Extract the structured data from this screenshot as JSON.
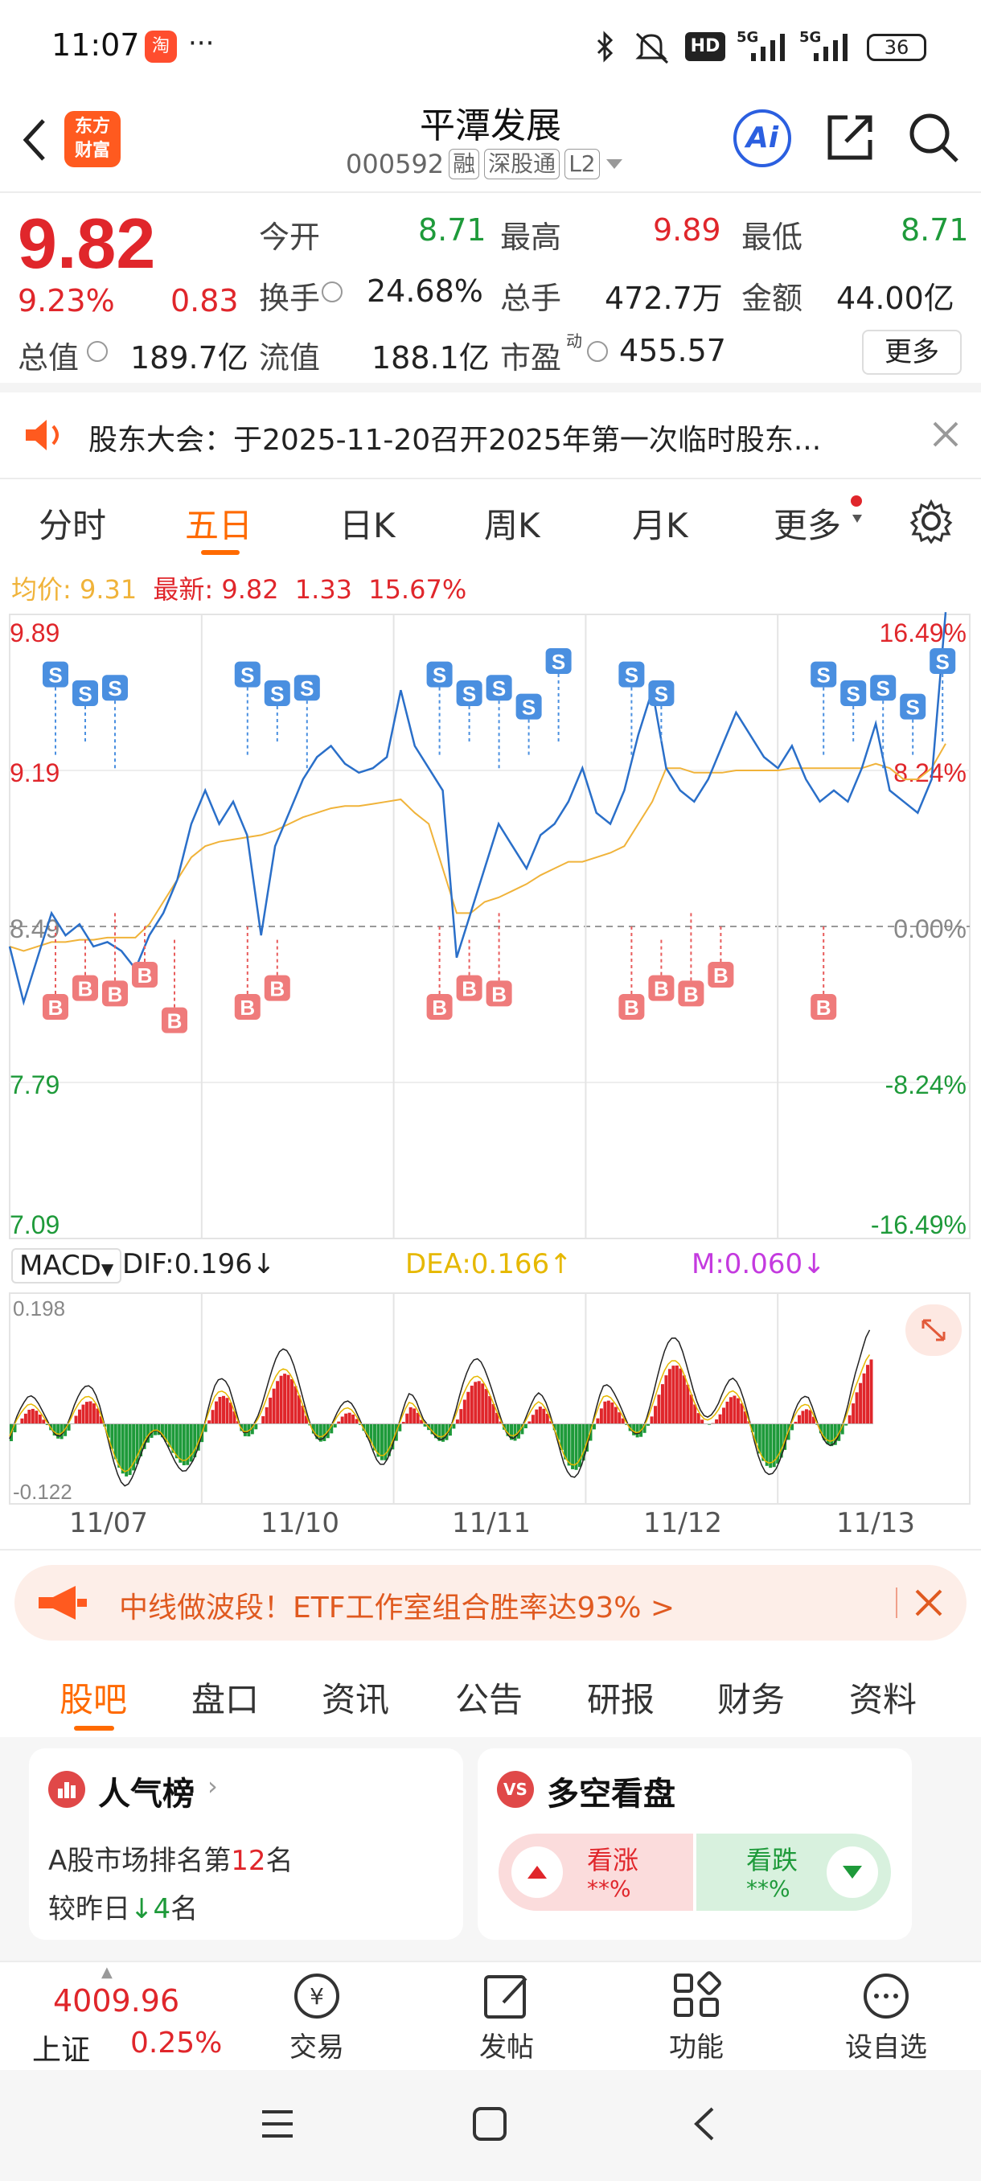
{
  "status_bar": {
    "time": "11:07",
    "app_icon_label": "淘",
    "more": "···",
    "icons": [
      "bluetooth-icon",
      "mute-icon",
      "hd-icon",
      "signal-5g-icon",
      "signal-5g-icon",
      "battery-icon"
    ],
    "hd_label": "HD",
    "net1": "5G",
    "net2": "5G",
    "battery": "36"
  },
  "header": {
    "logo_text_1": "东方",
    "logo_text_2": "财富",
    "title": "平潭发展",
    "code": "000592",
    "tag1": "融",
    "tag2": "深股通",
    "tag3": "L2",
    "ai_label": "Ai"
  },
  "quote": {
    "price": "9.82",
    "pct": "9.23%",
    "change": "0.83",
    "open_label": "今开",
    "open": "8.71",
    "high_label": "最高",
    "high": "9.89",
    "low_label": "最低",
    "low": "8.71",
    "turnover_label": "换手",
    "turnover": "24.68%",
    "volume_label": "总手",
    "volume": "472.7万",
    "amount_label": "金额",
    "amount": "44.00亿",
    "mktcap_label": "总值",
    "mktcap": "189.7亿",
    "float_label": "流值",
    "float": "188.1亿",
    "pe_label": "市盈",
    "pe_sup": "动",
    "pe": "455.57",
    "more_button": "更多"
  },
  "notice": {
    "text": "股东大会：于2025-11-20召开2025年第一次临时股东..."
  },
  "chart_tabs": {
    "tabs": [
      "分时",
      "五日",
      "日K",
      "周K",
      "月K",
      "更多"
    ],
    "active_index": 1
  },
  "chart_info": {
    "avg_label": "均价:",
    "avg": "9.31",
    "last_label": "最新:",
    "last": "9.82",
    "last_chg": "1.33",
    "last_pct": "15.67%"
  },
  "chart_data": {
    "type": "line",
    "y_left_ticks": [
      "9.89",
      "9.19",
      "8.49",
      "7.79",
      "7.09"
    ],
    "y_right_ticks": [
      "16.49%",
      "8.24%",
      "0.00%",
      "-8.24%",
      "-16.49%"
    ],
    "ylim": [
      7.09,
      9.89
    ],
    "baseline": 8.49,
    "x_labels": [
      "11/07",
      "11/10",
      "11/11",
      "11/12",
      "11/13"
    ],
    "series": [
      {
        "values": [
          8.4,
          8.15,
          8.35,
          8.55,
          8.45,
          8.5,
          8.4,
          8.42,
          8.38,
          8.3,
          8.45,
          8.55,
          8.7,
          8.95,
          9.1,
          8.95,
          9.05,
          8.9,
          8.45,
          8.85,
          9.0,
          9.15,
          9.25,
          9.3,
          9.22,
          9.18,
          9.2,
          9.25,
          9.55,
          9.3,
          9.2,
          9.1,
          8.35,
          8.55,
          8.75,
          8.95,
          8.85,
          8.75,
          8.9,
          8.95,
          9.05,
          9.2,
          9.0,
          8.95,
          9.1,
          9.35,
          9.55,
          9.2,
          9.1,
          9.05,
          9.15,
          9.3,
          9.45,
          9.35,
          9.25,
          9.2,
          9.3,
          9.15,
          9.05,
          9.1,
          9.05,
          9.2,
          9.4,
          9.1,
          9.05,
          9.0,
          9.15,
          9.9
        ]
      },
      {
        "values": [
          8.4,
          8.38,
          8.4,
          8.42,
          8.42,
          8.43,
          8.43,
          8.44,
          8.44,
          8.44,
          8.5,
          8.6,
          8.7,
          8.8,
          8.85,
          8.87,
          8.88,
          8.89,
          8.9,
          8.92,
          8.95,
          8.98,
          9.0,
          9.02,
          9.03,
          9.03,
          9.04,
          9.05,
          9.06,
          9.0,
          8.95,
          8.75,
          8.55,
          8.55,
          8.6,
          8.62,
          8.65,
          8.68,
          8.72,
          8.75,
          8.78,
          8.78,
          8.8,
          8.82,
          8.85,
          8.95,
          9.05,
          9.2,
          9.2,
          9.18,
          9.18,
          9.18,
          9.19,
          9.19,
          9.19,
          9.19,
          9.2,
          9.2,
          9.2,
          9.2,
          9.2,
          9.2,
          9.22,
          9.2,
          9.15,
          9.15,
          9.2,
          9.31
        ]
      }
    ],
    "markers": [
      {
        "type": "S",
        "day": 0
      },
      {
        "type": "S",
        "day": 0
      },
      {
        "type": "S",
        "day": 0
      },
      {
        "type": "B",
        "day": 0
      },
      {
        "type": "B",
        "day": 0
      },
      {
        "type": "B",
        "day": 0
      },
      {
        "type": "B",
        "day": 0
      },
      {
        "type": "B",
        "day": 0
      },
      {
        "type": "S",
        "day": 1
      },
      {
        "type": "S",
        "day": 1
      },
      {
        "type": "S",
        "day": 1
      },
      {
        "type": "B",
        "day": 1
      },
      {
        "type": "B",
        "day": 1
      },
      {
        "type": "S",
        "day": 2
      },
      {
        "type": "S",
        "day": 2
      },
      {
        "type": "S",
        "day": 2
      },
      {
        "type": "S",
        "day": 2
      },
      {
        "type": "S",
        "day": 2
      },
      {
        "type": "B",
        "day": 2
      },
      {
        "type": "B",
        "day": 2
      },
      {
        "type": "B",
        "day": 2
      },
      {
        "type": "S",
        "day": 3
      },
      {
        "type": "S",
        "day": 3
      },
      {
        "type": "B",
        "day": 3
      },
      {
        "type": "B",
        "day": 3
      },
      {
        "type": "B",
        "day": 3
      },
      {
        "type": "B",
        "day": 3
      },
      {
        "type": "S",
        "day": 4
      },
      {
        "type": "S",
        "day": 4
      },
      {
        "type": "S",
        "day": 4
      },
      {
        "type": "S",
        "day": 4
      },
      {
        "type": "S",
        "day": 4
      },
      {
        "type": "B",
        "day": 4
      }
    ],
    "macd": {
      "label": "MACD",
      "dif_label": "DIF:0.196",
      "dea_label": "DEA:0.166",
      "m_label": "M:0.060",
      "ymax": "0.198",
      "ymin": "-0.122"
    }
  },
  "promo": {
    "text": "中线做波段！ETF工作室组合胜率达93% >"
  },
  "bottom_tabs": {
    "tabs": [
      "股吧",
      "盘口",
      "资讯",
      "公告",
      "研报",
      "财务",
      "资料"
    ],
    "active_index": 0
  },
  "cards": {
    "popularity_title": "人气榜",
    "popularity_rank_prefix": "A股市场排名第",
    "popularity_rank": "12",
    "popularity_rank_suffix": "名",
    "popularity_change_prefix": "较昨日",
    "popularity_change": "4",
    "popularity_change_suffix": "名",
    "vs_title": "多空看盘",
    "bull_label": "看涨",
    "bull_value": "**%",
    "bear_label": "看跌",
    "bear_value": "**%"
  },
  "bottom_nav": {
    "index_value": "4009.96",
    "index_name": "上证",
    "index_pct": "0.25%",
    "items": [
      "交易",
      "发帖",
      "功能",
      "设自选"
    ]
  },
  "colors": {
    "up": "#e0262b",
    "down": "#1e9a3a",
    "accent": "#ff6a00",
    "price_line": "#2a6fc9",
    "avg_line": "#f0b33a"
  }
}
